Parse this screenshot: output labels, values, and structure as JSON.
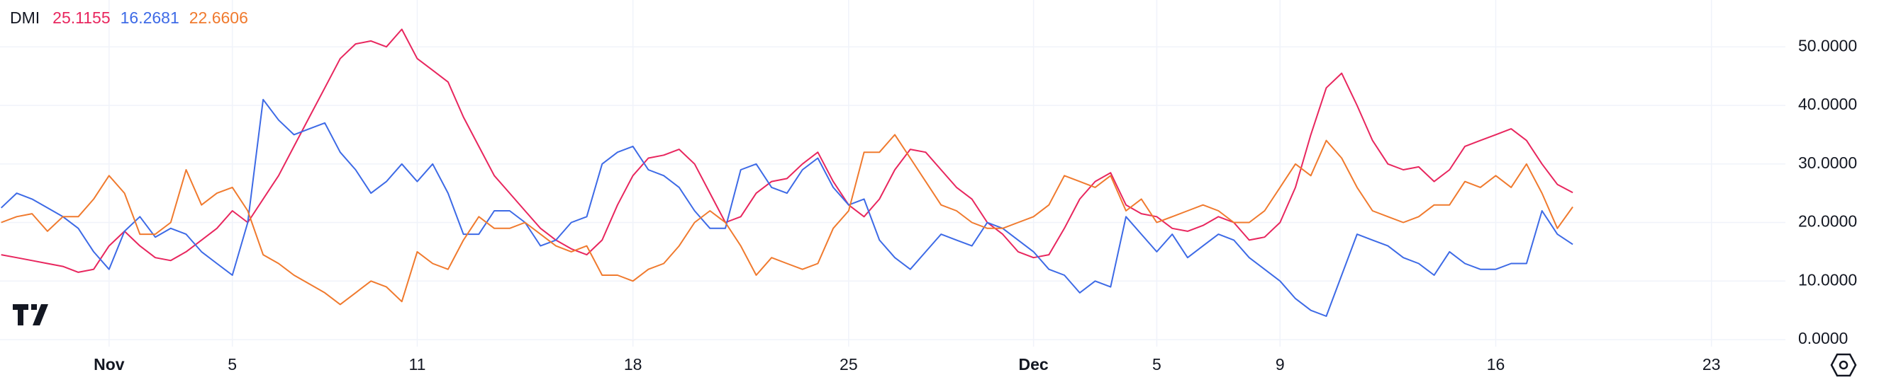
{
  "chart_data": {
    "type": "line",
    "title": "DMI",
    "x": [
      -3.5,
      -3,
      -2.5,
      -2,
      -1.5,
      -1,
      -0.5,
      0,
      0.5,
      1,
      1.5,
      2,
      2.5,
      3,
      3.5,
      4,
      4.5,
      5,
      5.5,
      6,
      6.5,
      7,
      7.5,
      8,
      8.5,
      9,
      9.5,
      10,
      10.5,
      11,
      11.5,
      12,
      12.5,
      13,
      13.5,
      14,
      14.5,
      15,
      15.5,
      16,
      16.5,
      17,
      17.5,
      18,
      18.5,
      19,
      19.5,
      20,
      20.5,
      21,
      21.5,
      22,
      22.5,
      23,
      23.5,
      24,
      24.5,
      25,
      25.5,
      26,
      26.5,
      27,
      27.5,
      28,
      28.5,
      29,
      29.5,
      30,
      30.5,
      31,
      31.5,
      32,
      32.5,
      33,
      33.5,
      34,
      34.5,
      35,
      35.5,
      36,
      36.5,
      37,
      37.5,
      38,
      38.5,
      39,
      39.5,
      40,
      40.5,
      41,
      41.5,
      42,
      42.5,
      43,
      43.5,
      44,
      44.5,
      45,
      45.5,
      46,
      46.5,
      47,
      47.5
    ],
    "series": [
      {
        "color": "#e8265e",
        "values": [
          14.5,
          14,
          13.5,
          13,
          12.5,
          11.5,
          12,
          16,
          18.5,
          16,
          14,
          13.5,
          15,
          17,
          19,
          22,
          20,
          24,
          28,
          33,
          38,
          43,
          48,
          50.5,
          51,
          50,
          53,
          48,
          46,
          44,
          38,
          33,
          28,
          25,
          22,
          19,
          17,
          15.5,
          14.5,
          17,
          23,
          28,
          31,
          31.5,
          32.5,
          30,
          25,
          20,
          21,
          25,
          27,
          27.5,
          30,
          32,
          27,
          23,
          21,
          24,
          29,
          32.5,
          32,
          29,
          26,
          24,
          20,
          18,
          15,
          14,
          14.5,
          19,
          24,
          27,
          28.5,
          23,
          21.5,
          21,
          19,
          18.5,
          19.5,
          21,
          20,
          17,
          17.5,
          20,
          26,
          35,
          43,
          45.5,
          40,
          34,
          30,
          29,
          29.5,
          27,
          29,
          33,
          34,
          35,
          36,
          34,
          30,
          26.5,
          25.1155
        ]
      },
      {
        "color": "#3d6ae6",
        "values": [
          22.5,
          25,
          24,
          22.5,
          21,
          19,
          15,
          12,
          18.5,
          21,
          17.5,
          19,
          18,
          15,
          13,
          11,
          20,
          41,
          37.5,
          35,
          36,
          37,
          32,
          29,
          25,
          27,
          30,
          27,
          30,
          25,
          18,
          18,
          22,
          22,
          20,
          16,
          17,
          20,
          21,
          30,
          32,
          33,
          29,
          28,
          26,
          22,
          19,
          19,
          29,
          30,
          26,
          25,
          29,
          31,
          26,
          23,
          24,
          17,
          14,
          12,
          15,
          18,
          17,
          16,
          20,
          19,
          17,
          15,
          12,
          11,
          8,
          10,
          9,
          21,
          18,
          15,
          18,
          14,
          16,
          18,
          17,
          14,
          12,
          10,
          7,
          5,
          4,
          11,
          18,
          17,
          16,
          14,
          13,
          11,
          15,
          13,
          12,
          12,
          13,
          13,
          22,
          18,
          16.2681
        ]
      },
      {
        "color": "#f07a2e",
        "values": [
          20,
          21,
          21.5,
          18.5,
          21,
          21,
          24,
          28,
          25,
          18,
          18,
          20,
          29,
          23,
          25,
          26,
          22,
          14.5,
          13,
          11,
          9.5,
          8,
          6,
          8,
          10,
          9,
          6.5,
          15,
          13,
          12,
          17,
          21,
          19,
          19,
          20,
          18,
          16,
          15,
          16,
          11,
          11,
          10,
          12,
          13,
          16,
          20,
          22,
          20,
          16,
          11,
          14,
          13,
          12,
          13,
          19,
          22,
          32,
          32,
          35,
          31,
          27,
          23,
          22,
          20,
          19,
          19,
          20,
          21,
          23,
          28,
          27,
          26,
          28,
          22,
          24,
          20,
          21,
          22,
          23,
          22,
          20,
          20,
          22,
          26,
          30,
          28,
          34,
          31,
          26,
          22,
          21,
          20,
          21,
          23,
          23,
          27,
          26,
          28,
          26,
          30,
          25,
          19,
          22.6606
        ]
      }
    ],
    "xlim": [
      -3.54,
      54.4
    ],
    "xticks": [
      {
        "value": 0,
        "label": "Nov"
      },
      {
        "value": 4,
        "label": "5"
      },
      {
        "value": 10,
        "label": "11"
      },
      {
        "value": 17,
        "label": "18"
      },
      {
        "value": 24,
        "label": "25"
      },
      {
        "value": 30,
        "label": "Dec"
      },
      {
        "value": 34,
        "label": "5"
      },
      {
        "value": 38,
        "label": "9"
      },
      {
        "value": 45,
        "label": "16"
      },
      {
        "value": 52,
        "label": "23"
      }
    ],
    "ylim": [
      -1.2,
      58
    ],
    "yticks": [
      {
        "value": 0,
        "label": "0.0000"
      },
      {
        "value": 10,
        "label": "10.0000"
      },
      {
        "value": 20,
        "label": "20.0000"
      },
      {
        "value": 30,
        "label": "30.0000"
      },
      {
        "value": 40,
        "label": "40.0000"
      },
      {
        "value": 50,
        "label": "50.0000"
      }
    ],
    "grid": true
  }
}
